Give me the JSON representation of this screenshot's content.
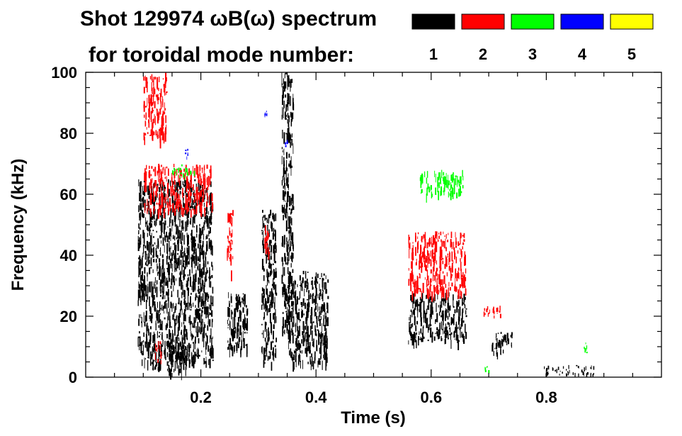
{
  "chart_data": {
    "type": "spectrogram",
    "title_line1": "Shot 129974 ωB(ω) spectrum",
    "title_line2": "for toroidal mode number:",
    "xlabel": "Time (s)",
    "ylabel": "Frequency (kHz)",
    "xlim": [
      0.0,
      1.0
    ],
    "ylim": [
      0,
      100
    ],
    "x_ticks": [
      0.2,
      0.4,
      0.6,
      0.8
    ],
    "x_tick_labels": [
      "0.2",
      "0.4",
      "0.6",
      "0.8"
    ],
    "y_ticks": [
      0,
      20,
      40,
      60,
      80,
      100
    ],
    "y_tick_labels": [
      "0",
      "20",
      "40",
      "60",
      "80",
      "100"
    ],
    "legend": {
      "placement": "top-right",
      "entries": [
        {
          "label": "1",
          "color": "#000000"
        },
        {
          "label": "2",
          "color": "#ff0000"
        },
        {
          "label": "3",
          "color": "#00ff00"
        },
        {
          "label": "4",
          "color": "#0000ff"
        },
        {
          "label": "5",
          "color": "#ffff00"
        }
      ]
    },
    "series": [
      {
        "mode": "1",
        "color": "#000000",
        "regions": [
          {
            "t": [
              0.09,
              0.22
            ],
            "f": [
              5,
              65
            ]
          },
          {
            "t": [
              0.11,
              0.13
            ],
            "f": [
              3,
              7
            ]
          },
          {
            "t": [
              0.14,
              0.18
            ],
            "f": [
              2,
              12
            ]
          },
          {
            "t": [
              0.245,
              0.28
            ],
            "f": [
              8,
              28
            ]
          },
          {
            "t": [
              0.305,
              0.33
            ],
            "f": [
              5,
              55
            ]
          },
          {
            "t": [
              0.34,
              0.36
            ],
            "f": [
              15,
              100
            ]
          },
          {
            "t": [
              0.35,
              0.42
            ],
            "f": [
              5,
              35
            ]
          },
          {
            "t": [
              0.4,
              0.42
            ],
            "f": [
              10,
              15
            ]
          },
          {
            "t": [
              0.56,
              0.66
            ],
            "f": [
              12,
              28
            ]
          },
          {
            "t": [
              0.705,
              0.74
            ],
            "f": [
              8,
              15
            ]
          },
          {
            "t": [
              0.795,
              0.885
            ],
            "f": [
              1,
              4
            ]
          }
        ]
      },
      {
        "mode": "2",
        "color": "#ff0000",
        "regions": [
          {
            "t": [
              0.1,
              0.22
            ],
            "f": [
              55,
              70
            ]
          },
          {
            "t": [
              0.1,
              0.14
            ],
            "f": [
              78,
              100
            ]
          },
          {
            "t": [
              0.12,
              0.13
            ],
            "f": [
              5,
              12
            ]
          },
          {
            "t": [
              0.245,
              0.255
            ],
            "f": [
              35,
              55
            ]
          },
          {
            "t": [
              0.31,
              0.32
            ],
            "f": [
              40,
              50
            ]
          },
          {
            "t": [
              0.56,
              0.66
            ],
            "f": [
              28,
              48
            ]
          },
          {
            "t": [
              0.69,
              0.72
            ],
            "f": [
              20,
              24
            ]
          }
        ]
      },
      {
        "mode": "3",
        "color": "#00ff00",
        "regions": [
          {
            "t": [
              0.15,
              0.19
            ],
            "f": [
              66,
              70
            ]
          },
          {
            "t": [
              0.58,
              0.655
            ],
            "f": [
              60,
              68
            ]
          },
          {
            "t": [
              0.69,
              0.7
            ],
            "f": [
              2,
              4
            ]
          },
          {
            "t": [
              0.865,
              0.87
            ],
            "f": [
              8,
              12
            ]
          }
        ]
      },
      {
        "mode": "4",
        "color": "#0000ff",
        "regions": [
          {
            "t": [
              0.17,
              0.18
            ],
            "f": [
              72,
              75
            ]
          },
          {
            "t": [
              0.31,
              0.315
            ],
            "f": [
              86,
              88
            ]
          },
          {
            "t": [
              0.345,
              0.35
            ],
            "f": [
              76,
              78
            ]
          }
        ]
      },
      {
        "mode": "5",
        "color": "#ffff00",
        "regions": []
      }
    ]
  }
}
